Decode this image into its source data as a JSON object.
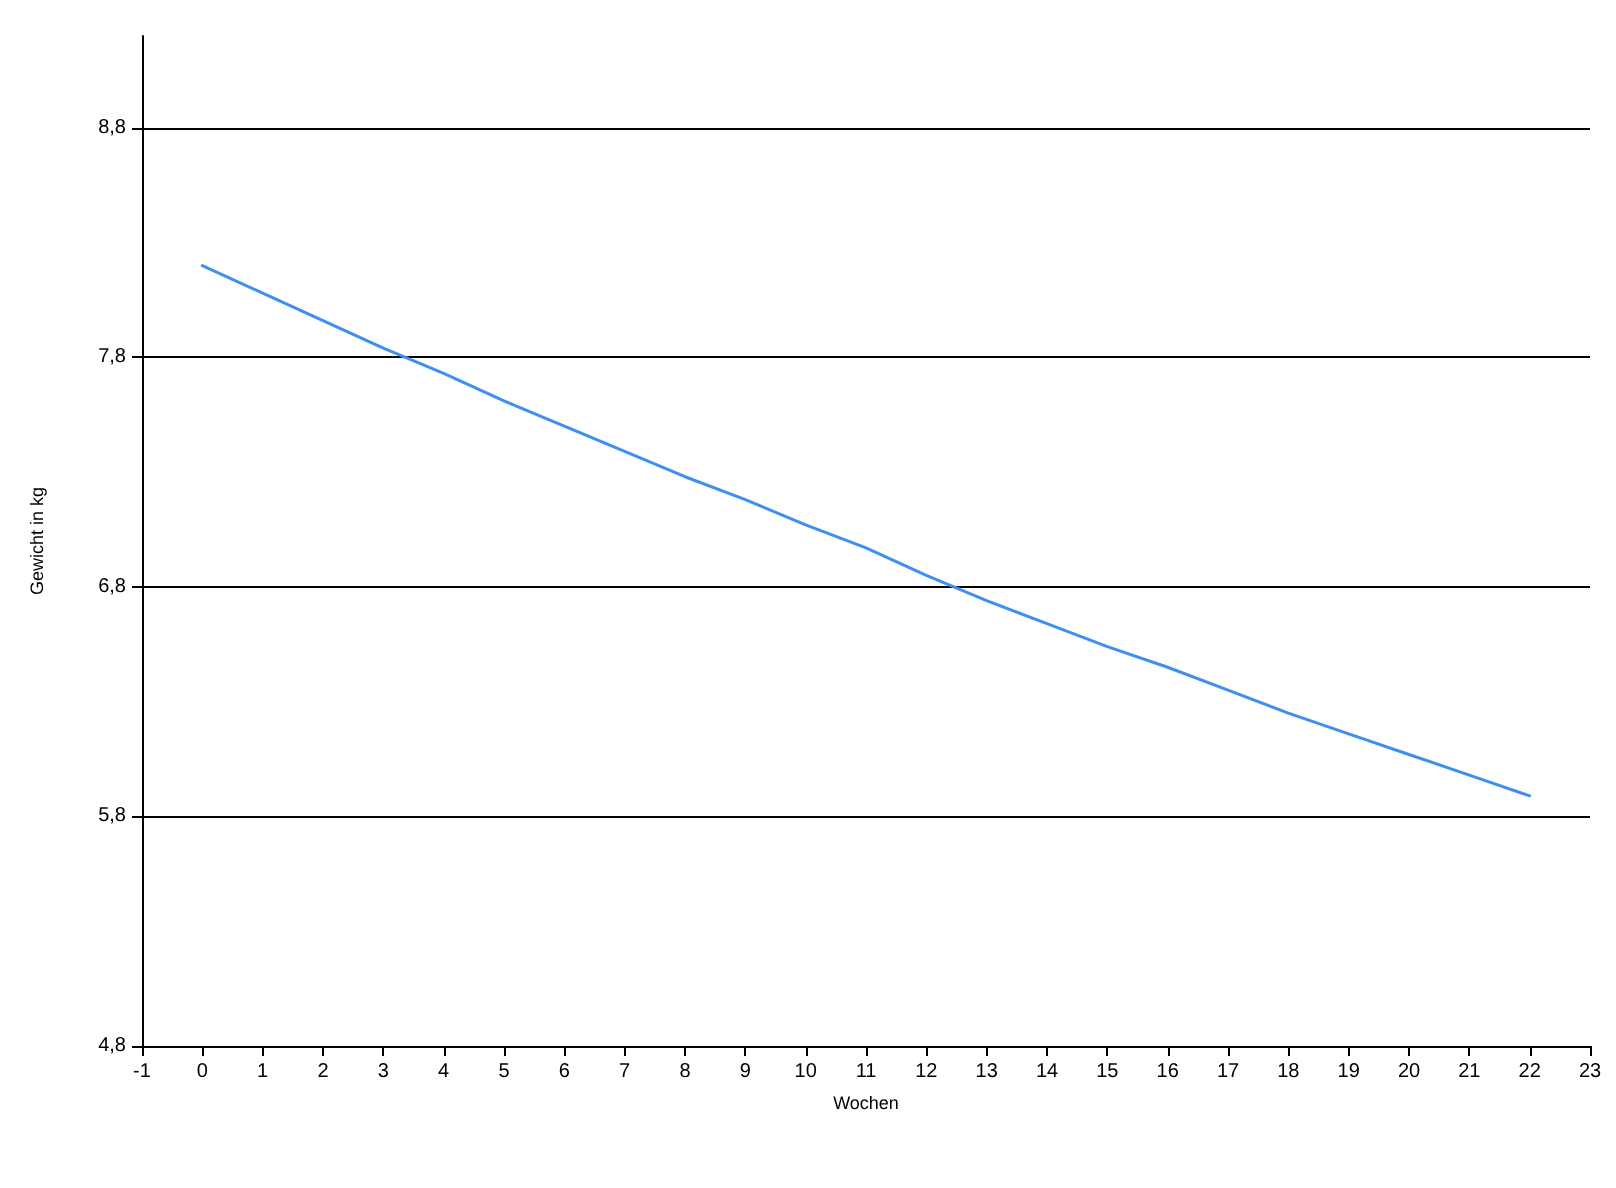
{
  "chart_data": {
    "type": "line",
    "xlabel": "Wochen",
    "ylabel": "Gewicht in kg",
    "x": [
      0,
      1,
      2,
      3,
      4,
      5,
      6,
      7,
      8,
      9,
      10,
      11,
      12,
      13,
      14,
      15,
      16,
      17,
      18,
      19,
      20,
      21,
      22
    ],
    "series": [
      {
        "color": "#3e8ff0",
        "values": [
          8.2,
          8.08,
          7.96,
          7.84,
          7.73,
          7.61,
          7.5,
          7.39,
          7.28,
          7.18,
          7.07,
          6.97,
          6.85,
          6.74,
          6.64,
          6.54,
          6.45,
          6.35,
          6.25,
          6.16,
          6.07,
          5.98,
          5.89
        ]
      }
    ],
    "xlim": [
      -1,
      23
    ],
    "xticks": [
      -1,
      0,
      1,
      2,
      3,
      4,
      5,
      6,
      7,
      8,
      9,
      10,
      11,
      12,
      13,
      14,
      15,
      16,
      17,
      18,
      19,
      20,
      21,
      22,
      23
    ],
    "ylim": [
      4.8,
      9.2
    ],
    "yticks": [
      {
        "value": 4.8,
        "label": "4,8"
      },
      {
        "value": 5.8,
        "label": "5,8"
      },
      {
        "value": 6.8,
        "label": "6,8"
      },
      {
        "value": 7.8,
        "label": "7,8"
      },
      {
        "value": 8.8,
        "label": "8,8"
      }
    ],
    "grid": "y",
    "marker": "none",
    "line_style": "solid"
  }
}
